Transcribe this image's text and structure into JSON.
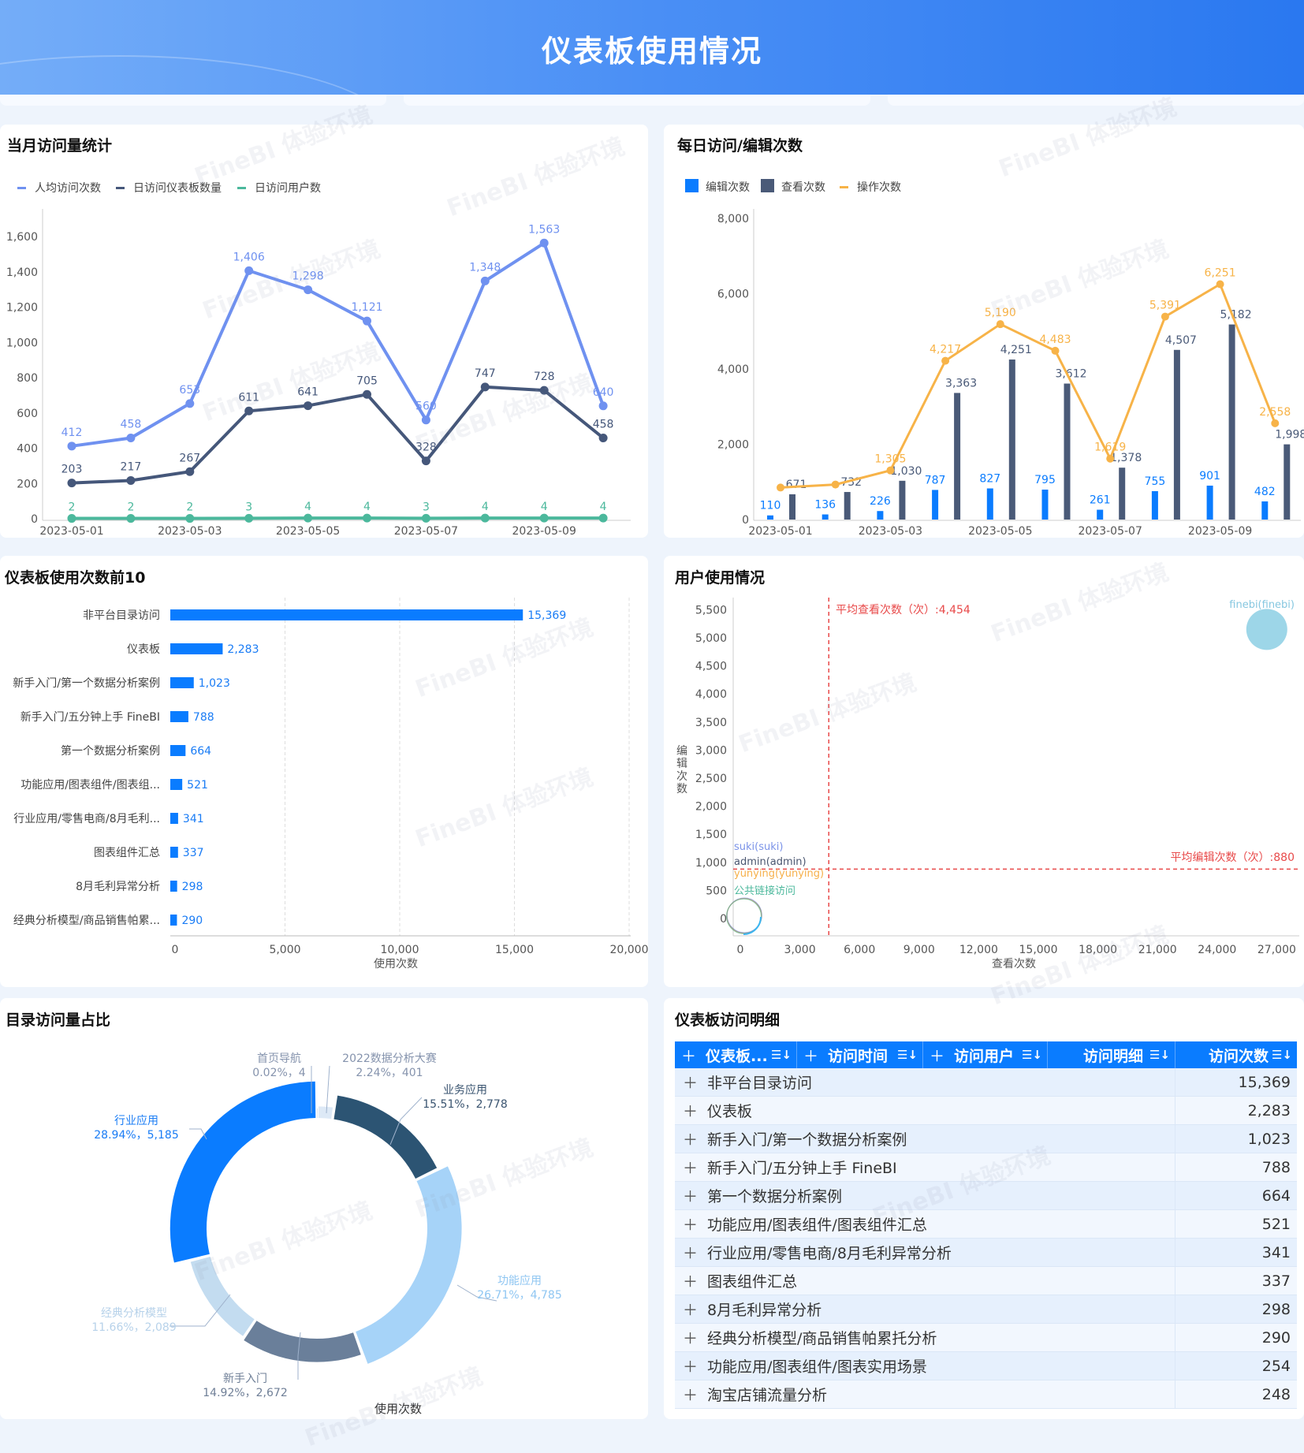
{
  "header": {
    "title": "仪表板使用情况"
  },
  "watermark": "FineBI 体验环境",
  "panels": {
    "monthly": {
      "title": "当月访问量统计"
    },
    "daily": {
      "title": "每日访问/编辑次数"
    },
    "top10": {
      "title": "仪表板使用次数前10"
    },
    "users": {
      "title": "用户使用情况"
    },
    "catalog": {
      "title": "目录访问量占比"
    },
    "detail": {
      "title": "仪表板访问明细"
    }
  },
  "chart_data": [
    {
      "type": "line",
      "title": "当月访问量统计",
      "x": [
        "2023-05-01",
        "2023-05-02",
        "2023-05-03",
        "2023-05-04",
        "2023-05-05",
        "2023-05-06",
        "2023-05-07",
        "2023-05-08",
        "2023-05-09",
        "2023-05-10"
      ],
      "x_tick_labels": [
        "2023-05-01",
        "2023-05-03",
        "2023-05-05",
        "2023-05-07",
        "2023-05-09"
      ],
      "ylim": [
        0,
        1600
      ],
      "y_ticks": [
        "0",
        "200",
        "400",
        "600",
        "800",
        "1,000",
        "1,200",
        "1,400",
        "1,600"
      ],
      "legend_position": "top-left",
      "series": [
        {
          "name": "人均访问次数",
          "color": "#6f91f0",
          "values": [
            412,
            458,
            653,
            1406,
            1298,
            1121,
            560,
            1348,
            1563,
            640
          ],
          "labels": [
            "412",
            "458",
            "653",
            "1,406",
            "1,298",
            "1,121",
            "560",
            "1,348",
            "1,563",
            "640"
          ]
        },
        {
          "name": "日访问仪表板数量",
          "color": "#45577a",
          "values": [
            203,
            217,
            267,
            611,
            641,
            705,
            328,
            747,
            728,
            458
          ],
          "labels": [
            "203",
            "217",
            "267",
            "611",
            "641",
            "705",
            "328",
            "747",
            "728",
            "458"
          ]
        },
        {
          "name": "日访问用户数",
          "color": "#4bb89c",
          "values": [
            2,
            2,
            2,
            3,
            4,
            4,
            3,
            4,
            4,
            4
          ],
          "labels": [
            "2",
            "2",
            "2",
            "3",
            "4",
            "4",
            "3",
            "4",
            "4",
            "4"
          ]
        }
      ]
    },
    {
      "type": "bar",
      "title": "每日访问/编辑次数",
      "x": [
        "2023-05-01",
        "2023-05-02",
        "2023-05-03",
        "2023-05-04",
        "2023-05-05",
        "2023-05-06",
        "2023-05-07",
        "2023-05-08",
        "2023-05-09",
        "2023-05-10"
      ],
      "x_tick_labels": [
        "2023-05-01",
        "2023-05-03",
        "2023-05-05",
        "2023-05-07",
        "2023-05-09"
      ],
      "ylim": [
        0,
        8000
      ],
      "y_ticks": [
        "0",
        "2,000",
        "4,000",
        "6,000",
        "8,000"
      ],
      "legend_position": "top-left",
      "series": [
        {
          "name": "编辑次数",
          "kind": "bar",
          "color": "#0a7cff",
          "values": [
            110,
            136,
            226,
            787,
            827,
            795,
            261,
            755,
            901,
            482
          ],
          "labels": [
            "110",
            "136",
            "226",
            "787",
            "827",
            "795",
            "261",
            "755",
            "901",
            "482"
          ]
        },
        {
          "name": "查看次数",
          "kind": "bar",
          "color": "#4a5a78",
          "values": [
            671,
            732,
            1030,
            3363,
            4251,
            3612,
            1378,
            4507,
            5182,
            1998
          ],
          "labels": [
            "671",
            "732",
            "1,030",
            "3,363",
            "4,251",
            "3,612",
            "1,378",
            "4,507",
            "5,182",
            "1,998"
          ]
        },
        {
          "name": "操作次数",
          "kind": "line",
          "color": "#f7b348",
          "values": [
            850,
            930,
            1305,
            4217,
            5190,
            4483,
            1619,
            5391,
            6251,
            2558
          ],
          "labels": [
            null,
            null,
            "1,305",
            "4,217",
            "5,190",
            "4,483",
            "1,619",
            "5,391",
            "6,251",
            "2,558"
          ]
        }
      ]
    },
    {
      "type": "bar",
      "orientation": "horizontal",
      "title": "仪表板使用次数前10",
      "categories": [
        "非平台目录访问",
        "仪表板",
        "新手入门/第一个数据分析案例",
        "新手入门/五分钟上手 FineBI",
        "第一个数据分析案例",
        "功能应用/图表组件/图表组...",
        "行业应用/零售电商/8月毛利...",
        "图表组件汇总",
        "8月毛利异常分析",
        "经典分析模型/商品销售帕累..."
      ],
      "values": [
        15369,
        2283,
        1023,
        788,
        664,
        521,
        341,
        337,
        298,
        290
      ],
      "labels": [
        "15,369",
        "2,283",
        "1,023",
        "788",
        "664",
        "521",
        "341",
        "337",
        "298",
        "290"
      ],
      "xlabel": "使用次数",
      "xlim": [
        0,
        20000
      ],
      "x_ticks": [
        "0",
        "5,000",
        "10,000",
        "15,000",
        "20,000"
      ],
      "color": "#0a7cff"
    },
    {
      "type": "scatter",
      "title": "用户使用情况",
      "xlabel": "查看次数",
      "ylabel": "编辑次数",
      "xlim": [
        0,
        27000
      ],
      "ylim": [
        0,
        5500
      ],
      "x_ticks": [
        "0",
        "3,000",
        "6,000",
        "9,000",
        "12,000",
        "15,000",
        "18,000",
        "21,000",
        "24,000",
        "27,000"
      ],
      "y_ticks": [
        "0",
        "500",
        "1,000",
        "1,500",
        "2,000",
        "2,500",
        "3,000",
        "3,500",
        "4,000",
        "4,500",
        "5,000",
        "5,500"
      ],
      "points": [
        {
          "name": "finebi(finebi)",
          "x": 26500,
          "y": 5150,
          "color": "#9dd6e8"
        },
        {
          "name": "suki(suki)",
          "x": 50,
          "y": 30,
          "color": "#7b93e8"
        },
        {
          "name": "admin(admin)",
          "x": 40,
          "y": 20,
          "color": "#4a5670"
        },
        {
          "name": "yunying(yunying)",
          "x": 30,
          "y": 15,
          "color": "#f6b04a"
        },
        {
          "name": "公共链接访问",
          "x": 20,
          "y": 10,
          "color": "#4bb89c"
        }
      ],
      "ref_lines": {
        "avg_view": {
          "value": 4454,
          "label": "平均查看次数（次）:4,454"
        },
        "avg_edit": {
          "value": 880,
          "label": "平均编辑次数（次）:880"
        }
      }
    },
    {
      "type": "pie",
      "title": "目录访问量占比",
      "legend_title": "使用次数",
      "slices": [
        {
          "name": "首页导航",
          "value": 4,
          "percent": "0.02%",
          "label": "0.02%，4",
          "color": "#6b84a8"
        },
        {
          "name": "2022数据分析大赛",
          "value": 401,
          "percent": "2.24%",
          "label": "2.24%，401",
          "color": "#dde9f6"
        },
        {
          "name": "业务应用",
          "value": 2778,
          "percent": "15.51%",
          "label": "15.51%，2,778",
          "color": "#2c5473"
        },
        {
          "name": "功能应用",
          "value": 4785,
          "percent": "26.71%",
          "label": "26.71%，4,785",
          "color": "#a6d3f8"
        },
        {
          "name": "新手入门",
          "value": 2672,
          "percent": "14.92%",
          "label": "14.92%，2,672",
          "color": "#6a7f9a"
        },
        {
          "name": "经典分析模型",
          "value": 2089,
          "percent": "11.66%",
          "label": "11.66%，2,089",
          "color": "#c3dcf0"
        },
        {
          "name": "行业应用",
          "value": 5185,
          "percent": "28.94%",
          "label": "28.94%，5,185",
          "color": "#0a7cff"
        }
      ]
    }
  ],
  "table": {
    "columns": [
      "仪表板...",
      "访问时间",
      "访问用户",
      "访问明细",
      "访问次数"
    ],
    "rows": [
      {
        "name": "非平台目录访问",
        "count": "15,369"
      },
      {
        "name": "仪表板",
        "count": "2,283"
      },
      {
        "name": "新手入门/第一个数据分析案例",
        "count": "1,023"
      },
      {
        "name": "新手入门/五分钟上手 FineBI",
        "count": "788"
      },
      {
        "name": "第一个数据分析案例",
        "count": "664"
      },
      {
        "name": "功能应用/图表组件/图表组件汇总",
        "count": "521"
      },
      {
        "name": "行业应用/零售电商/8月毛利异常分析",
        "count": "341"
      },
      {
        "name": "图表组件汇总",
        "count": "337"
      },
      {
        "name": "8月毛利异常分析",
        "count": "298"
      },
      {
        "name": "经典分析模型/商品销售帕累托分析",
        "count": "290"
      },
      {
        "name": "功能应用/图表组件/图表实用场景",
        "count": "254"
      },
      {
        "name": "淘宝店铺流量分析",
        "count": "248"
      }
    ]
  }
}
